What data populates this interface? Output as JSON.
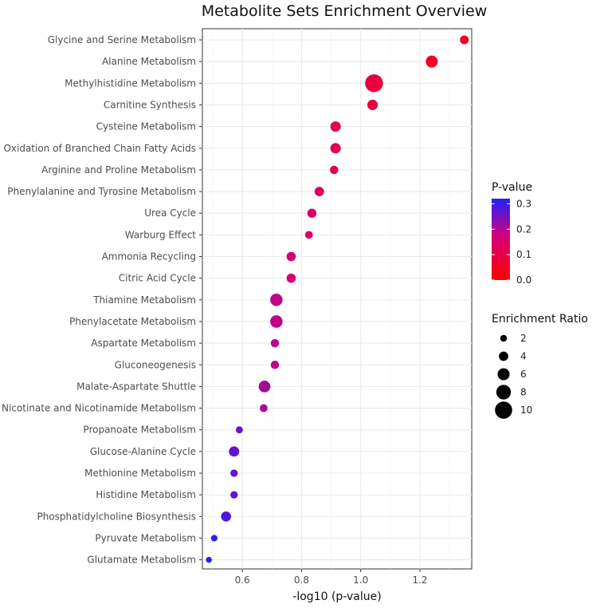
{
  "chart_data": {
    "type": "scatter",
    "title": "Metabolite Sets Enrichment Overview",
    "xlabel": "-log10 (p-value)",
    "ylabel": "",
    "xlim": [
      0.465,
      1.375
    ],
    "xticks": [
      0.6,
      0.8,
      1.0,
      1.2
    ],
    "xtick_labels": [
      "0.6",
      "0.8",
      "1.0",
      "1.2"
    ],
    "grid": true,
    "legend_position": "right",
    "color_legend": {
      "title": "P-value",
      "ticks": [
        0.3,
        0.2,
        0.1,
        0.0
      ],
      "tick_labels": [
        "0.3",
        "0.2",
        "0.1",
        "0.0"
      ],
      "range": [
        0.0,
        0.32
      ],
      "low_color": "#ff0000",
      "mid_color": "#d4007a",
      "high_color": "#2020ff"
    },
    "size_legend": {
      "title": "Enrichment Ratio",
      "values": [
        2,
        4,
        6,
        8,
        10
      ],
      "labels": [
        "2",
        "4",
        "6",
        "8",
        "10"
      ]
    },
    "points": [
      {
        "name": "Glycine and Serine Metabolism",
        "x": 1.35,
        "p": 0.045,
        "ratio": 3.5
      },
      {
        "name": "Alanine Metabolism",
        "x": 1.24,
        "p": 0.058,
        "ratio": 6.0
      },
      {
        "name": "Methylhistidine Metabolism",
        "x": 1.045,
        "p": 0.09,
        "ratio": 10.5
      },
      {
        "name": "Carnitine Synthesis",
        "x": 1.04,
        "p": 0.091,
        "ratio": 4.8
      },
      {
        "name": "Cysteine Metabolism",
        "x": 0.915,
        "p": 0.122,
        "ratio": 4.8
      },
      {
        "name": "Oxidation of Branched Chain Fatty Acids",
        "x": 0.915,
        "p": 0.122,
        "ratio": 4.8
      },
      {
        "name": "Arginine and Proline Metabolism",
        "x": 0.91,
        "p": 0.123,
        "ratio": 3.2
      },
      {
        "name": "Phenylalanine and Tyrosine Metabolism",
        "x": 0.86,
        "p": 0.138,
        "ratio": 4.0
      },
      {
        "name": "Urea Cycle",
        "x": 0.835,
        "p": 0.146,
        "ratio": 3.8
      },
      {
        "name": "Warburg Effect",
        "x": 0.825,
        "p": 0.15,
        "ratio": 2.8
      },
      {
        "name": "Ammonia Recycling",
        "x": 0.765,
        "p": 0.172,
        "ratio": 3.9
      },
      {
        "name": "Citric Acid Cycle",
        "x": 0.765,
        "p": 0.172,
        "ratio": 3.9
      },
      {
        "name": "Thiamine Metabolism",
        "x": 0.715,
        "p": 0.193,
        "ratio": 6.3
      },
      {
        "name": "Phenylacetate Metabolism",
        "x": 0.715,
        "p": 0.193,
        "ratio": 6.3
      },
      {
        "name": "Aspartate Metabolism",
        "x": 0.71,
        "p": 0.195,
        "ratio": 3.2
      },
      {
        "name": "Gluconeogenesis",
        "x": 0.71,
        "p": 0.195,
        "ratio": 3.2
      },
      {
        "name": "Malate-Aspartate Shuttle",
        "x": 0.675,
        "p": 0.211,
        "ratio": 5.8
      },
      {
        "name": "Nicotinate and Nicotinamide Metabolism",
        "x": 0.672,
        "p": 0.213,
        "ratio": 2.8
      },
      {
        "name": "Propanoate Metabolism",
        "x": 0.59,
        "p": 0.257,
        "ratio": 2.2
      },
      {
        "name": "Glucose-Alanine Cycle",
        "x": 0.572,
        "p": 0.268,
        "ratio": 4.7
      },
      {
        "name": "Methionine Metabolism",
        "x": 0.572,
        "p": 0.268,
        "ratio": 2.5
      },
      {
        "name": "Histidine Metabolism",
        "x": 0.572,
        "p": 0.268,
        "ratio": 2.5
      },
      {
        "name": "Phosphatidylcholine Biosynthesis",
        "x": 0.545,
        "p": 0.285,
        "ratio": 4.5
      },
      {
        "name": "Pyruvate Metabolism",
        "x": 0.505,
        "p": 0.313,
        "ratio": 1.8
      },
      {
        "name": "Glutamate Metabolism",
        "x": 0.487,
        "p": 0.326,
        "ratio": 1.4
      }
    ]
  }
}
